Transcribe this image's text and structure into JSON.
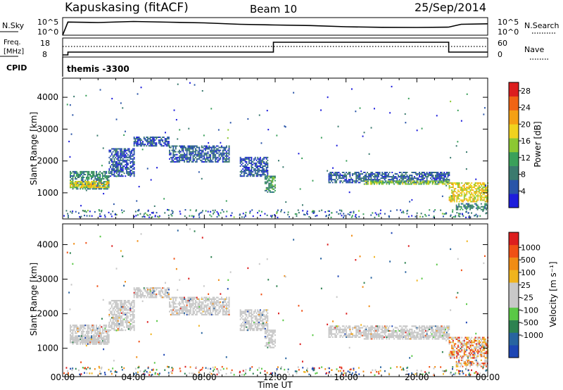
{
  "header": {
    "station": "Kapuskasing (fitACF)",
    "beam": "Beam 10",
    "date": "25/Sep/2014"
  },
  "sky_panel": {
    "left_label": "N.Sky",
    "right_label": "N.Search",
    "left_ticks": [
      "10^5",
      "10^0"
    ],
    "right_ticks": [
      "10^5",
      "10^0"
    ]
  },
  "freq_panel": {
    "left_label_line1": "Freq.",
    "left_label_line2": "[MHz]",
    "left_ticks": [
      "18",
      "8"
    ],
    "right_ticks": [
      "60",
      "0"
    ],
    "right_label": "Nave"
  },
  "cpid": {
    "label": "CPID",
    "value": "themis -3300"
  },
  "colors": {
    "power_scale": [
      "#1e1edc",
      "#2a55a8",
      "#3a7a6e",
      "#3aa05a",
      "#8cc832",
      "#f0d21e",
      "#f5a014",
      "#f06414",
      "#dc1e1e"
    ],
    "velocity_scale": [
      "#1e46b4",
      "#2864a0",
      "#2d8250",
      "#5ac846",
      "#c8c8c8",
      "#c8c8c8",
      "#f0b41e",
      "#f08c14",
      "#f05014",
      "#dc1e1e"
    ],
    "ground_scatter": "#c8c8c8"
  },
  "chart_data": [
    {
      "type": "heatmap",
      "name": "power",
      "xlabel": "",
      "ylabel": "Slant Range [km]",
      "xlim": [
        0,
        24
      ],
      "ylim": [
        180,
        4600
      ],
      "x_ticks": [
        "00:00",
        "04:00",
        "08:00",
        "12:00",
        "16:00",
        "20:00",
        "00:00"
      ],
      "y_ticks": [
        1000,
        2000,
        3000,
        4000
      ],
      "colorbar": {
        "label": "Power [dB]",
        "ticks": [
          4,
          8,
          12,
          16,
          20,
          24,
          28
        ],
        "range": [
          0,
          30
        ]
      },
      "bands": [
        {
          "t0": 0.4,
          "t1": 2.6,
          "r0": 1100,
          "r1": 1650,
          "value": 9
        },
        {
          "t0": 0.4,
          "t1": 2.6,
          "r0": 1150,
          "r1": 1350,
          "value": 18
        },
        {
          "t0": 2.6,
          "t1": 4.0,
          "r0": 1500,
          "r1": 2400,
          "value": 5
        },
        {
          "t0": 4.0,
          "t1": 6.0,
          "r0": 2450,
          "r1": 2750,
          "value": 5
        },
        {
          "t0": 6.0,
          "t1": 9.4,
          "r0": 1950,
          "r1": 2450,
          "value": 6
        },
        {
          "t0": 10.0,
          "t1": 11.6,
          "r0": 1500,
          "r1": 2100,
          "value": 5
        },
        {
          "t0": 11.4,
          "t1": 12.0,
          "r0": 1000,
          "r1": 1500,
          "value": 10
        },
        {
          "t0": 15.0,
          "t1": 21.8,
          "r0": 1300,
          "r1": 1650,
          "value": 6
        },
        {
          "t0": 17.0,
          "t1": 21.8,
          "r0": 1250,
          "r1": 1350,
          "value": 14
        },
        {
          "t0": 21.8,
          "t1": 24.0,
          "r0": 700,
          "r1": 1300,
          "value": 18
        },
        {
          "t0": 22.2,
          "t1": 24.0,
          "r0": 450,
          "r1": 650,
          "value": 9
        }
      ]
    },
    {
      "type": "heatmap",
      "name": "velocity",
      "xlabel": "Time UT",
      "ylabel": "Slant Range [km]",
      "xlim": [
        0,
        24
      ],
      "ylim": [
        180,
        4600
      ],
      "x_ticks": [
        "00:00",
        "04:00",
        "08:00",
        "12:00",
        "16:00",
        "20:00",
        "00:00"
      ],
      "y_ticks": [
        1000,
        2000,
        3000,
        4000
      ],
      "colorbar": {
        "label": "Velocity [m s⁻¹]",
        "ticks": [
          "1000",
          "500",
          "100",
          "25",
          "-25",
          "-100",
          "-500",
          "-1000"
        ]
      }
    }
  ],
  "sky_noise_series": {
    "x": [
      0,
      0.3,
      2,
      4,
      6,
      8,
      10,
      12,
      14,
      16,
      18,
      20,
      21.8,
      22.5,
      24
    ],
    "y_frac": [
      0.0,
      0.75,
      0.72,
      0.78,
      0.74,
      0.7,
      0.62,
      0.58,
      0.55,
      0.48,
      0.45,
      0.44,
      0.46,
      0.62,
      0.65
    ]
  },
  "freq_series": {
    "x": [
      0,
      0.3,
      0.3,
      11.9,
      11.9,
      21.8,
      21.8,
      24
    ],
    "mhz": [
      8,
      8,
      10,
      10,
      17,
      17,
      10,
      10
    ]
  },
  "nave_level_mhz": 14
}
